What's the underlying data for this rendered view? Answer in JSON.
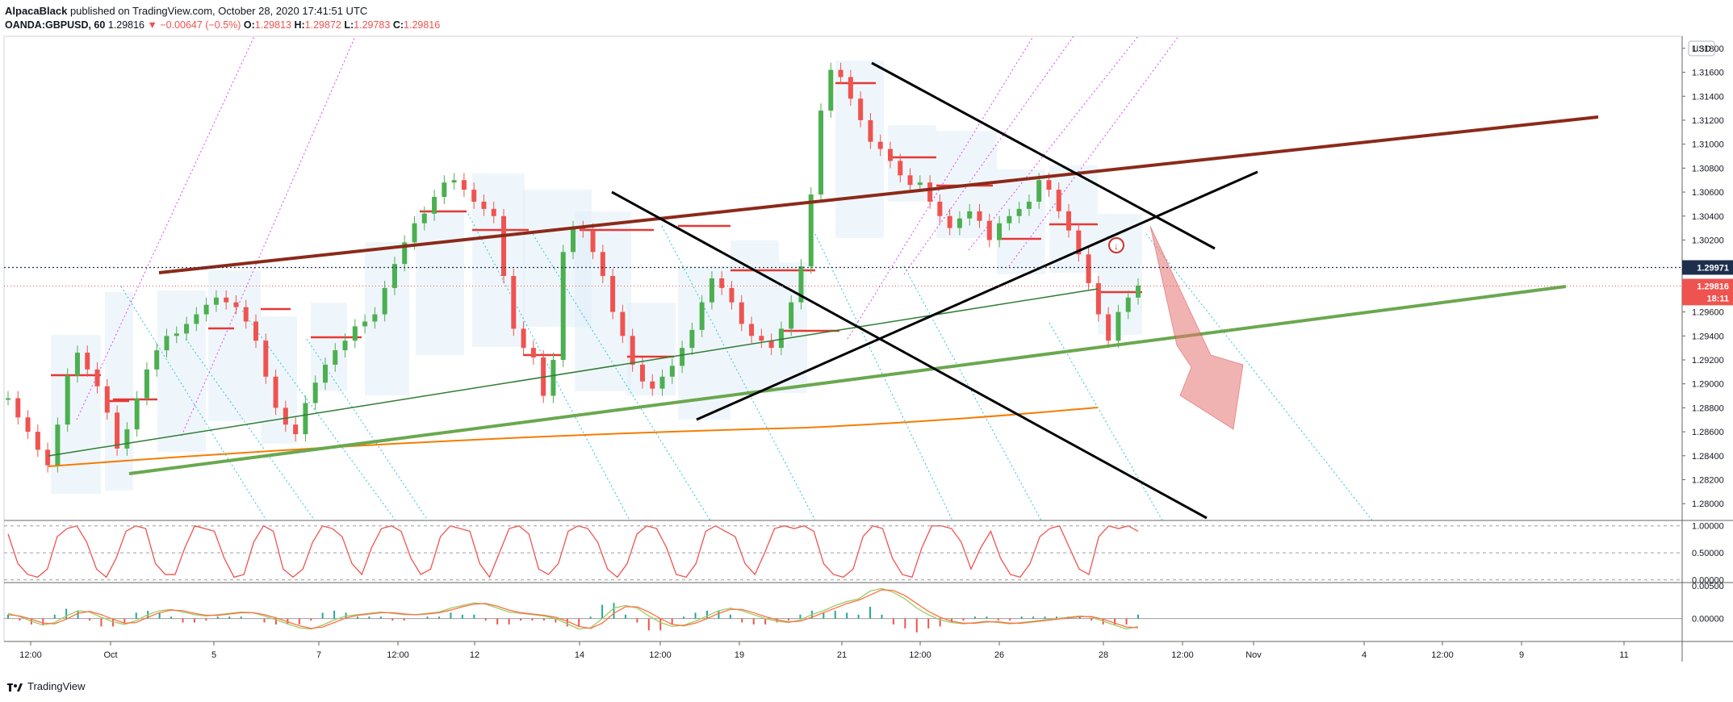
{
  "header": {
    "author": "AlpacaBlack",
    "published": "published on TradingView.com, October 28, 2020 17:41:51 UTC"
  },
  "quote": {
    "symbol": "OANDA:GBPUSD, 60",
    "last": "1.29816",
    "change": "−0.00647 (−0.5%)",
    "o_label": "O:",
    "o": "1.29813",
    "h_label": "H:",
    "h": "1.29872",
    "l_label": "L:",
    "l": "1.29783",
    "c_label": "C:",
    "c": "1.29816"
  },
  "footer": {
    "brand": "TradingView"
  },
  "colors": {
    "bearish": "#ef5350",
    "bullish": "#26a69a",
    "candle_up": "#4caf50",
    "candle_down": "#ef5350",
    "channel_top": "#8b2a1a",
    "channel_bottom": "#6aa84f",
    "ma_green": "#2e7d32",
    "ma_orange": "#f57c00",
    "black_lines": "#000000",
    "arrow": "#e57373",
    "last_price_bg": "#ef5350",
    "marker_bg": "#1e2f4d"
  },
  "chart_data": [
    {
      "type": "line",
      "title": "",
      "currency": "USD",
      "y_ticks": [
        "1.31800",
        "1.31600",
        "1.31400",
        "1.31200",
        "1.31000",
        "1.30800",
        "1.30600",
        "1.30400",
        "1.30200",
        "1.30000",
        "1.29800",
        "1.29600",
        "1.29400",
        "1.29200",
        "1.29000",
        "1.28800",
        "1.28600",
        "1.28400",
        "1.28200",
        "1.28000"
      ],
      "ylim": [
        1.2786,
        1.319
      ],
      "x_ticks": [
        "12:00",
        "Oct",
        "5",
        "7",
        "12:00",
        "12",
        "14",
        "12:00",
        "19",
        "21",
        "12:00",
        "26",
        "28",
        "12:00",
        "Nov",
        "4",
        "12:00",
        "9",
        "11"
      ],
      "price_markers": [
        {
          "label": "1.29971",
          "value": 1.29971
        },
        {
          "label": "1.29816",
          "value": 1.29816
        },
        {
          "label": "18:11",
          "value": 1.29716
        }
      ],
      "series": [
        {
          "values": [
            1.2888,
            1.2872,
            1.286,
            1.2845,
            1.2832,
            1.2866,
            1.2907,
            1.2926,
            1.2912,
            1.2898,
            1.2876,
            1.2846,
            1.2862,
            1.2888,
            1.2912,
            1.2928,
            1.294,
            1.2942,
            1.295,
            1.2958,
            1.2966,
            1.2972,
            1.2968,
            1.2964,
            1.2952,
            1.2936,
            1.2906,
            1.288,
            1.2866,
            1.2858,
            1.2884,
            1.2901,
            1.2916,
            1.2928,
            1.2936,
            1.2948,
            1.2952,
            1.2958,
            1.298,
            1.3,
            1.3018,
            1.3034,
            1.3042,
            1.3056,
            1.3068,
            1.307,
            1.3062,
            1.3052,
            1.3046,
            1.304,
            1.299,
            1.2946,
            1.293,
            1.2922,
            1.289,
            1.292,
            1.301,
            1.303,
            1.3028,
            1.301,
            1.299,
            1.296,
            1.294,
            1.2916,
            1.2902,
            1.2896,
            1.2906,
            1.2915,
            1.293,
            1.2945,
            1.2968,
            1.2988,
            1.298,
            1.2968,
            1.295,
            1.294,
            1.2936,
            1.293,
            1.2946,
            1.2968,
            1.2998,
            1.3058,
            1.3128,
            1.3162,
            1.3156,
            1.3138,
            1.312,
            1.3102,
            1.3096,
            1.3086,
            1.3074,
            1.3066,
            1.3068,
            1.3052,
            1.304,
            1.303,
            1.3038,
            1.3044,
            1.3036,
            1.302,
            1.3034,
            1.304,
            1.3046,
            1.3052,
            1.307,
            1.3062,
            1.3044,
            1.3028,
            1.3008,
            1.2984,
            1.2958,
            1.2936,
            1.296,
            1.2972,
            1.2982
          ]
        }
      ]
    },
    {
      "type": "line",
      "title": "",
      "y_ticks": [
        "1.00000",
        "0.50000",
        "0.00000"
      ],
      "ylim": [
        -0.05,
        1.1
      ],
      "series": [
        {
          "values": [
            0.85,
            0.3,
            0.1,
            0.05,
            0.2,
            0.8,
            0.95,
            1.0,
            0.7,
            0.2,
            0.05,
            0.4,
            0.9,
            1.0,
            0.95,
            0.3,
            0.1,
            0.1,
            0.6,
            1.0,
            0.95,
            0.9,
            0.4,
            0.05,
            0.1,
            0.7,
            1.0,
            0.9,
            0.2,
            0.05,
            0.2,
            0.7,
            1.0,
            0.95,
            0.8,
            0.3,
            0.1,
            0.6,
            0.95,
            1.0,
            0.9,
            0.4,
            0.1,
            0.2,
            0.8,
            1.0,
            0.95,
            0.9,
            0.3,
            0.05,
            0.5,
            0.95,
            1.0,
            0.85,
            0.2,
            0.1,
            0.3,
            0.9,
            1.0,
            0.95,
            0.7,
            0.2,
            0.05,
            0.3,
            0.85,
            1.0,
            0.95,
            0.6,
            0.1,
            0.05,
            0.3,
            0.9,
            1.0,
            0.9,
            0.8,
            0.3,
            0.1,
            0.5,
            0.95,
            1.0,
            0.95,
            1.0,
            0.9,
            0.3,
            0.1,
            0.05,
            0.2,
            0.8,
            1.0,
            0.95,
            0.4,
            0.1,
            0.05,
            0.6,
            1.0,
            1.0,
            0.95,
            0.7,
            0.2,
            0.6,
            0.9,
            0.4,
            0.1,
            0.05,
            0.3,
            0.8,
            0.95,
            1.0,
            0.6,
            0.2,
            0.1,
            0.8,
            1.0,
            0.95,
            1.0,
            0.9
          ]
        }
      ]
    },
    {
      "type": "line",
      "title": "",
      "y_ticks": [
        "0.00500",
        "0.00000"
      ],
      "ylim": [
        -0.0035,
        0.0055
      ],
      "series": [
        {
          "values": [
            0.0008,
            0.0003,
            -0.0004,
            -0.001,
            -0.0006,
            0.0004,
            0.0012,
            0.001,
            0.0002,
            -0.0005,
            -0.0009,
            -0.0003,
            0.0006,
            0.0012,
            0.0014,
            0.001,
            0.0006,
            0.0004,
            0.0006,
            0.0008,
            0.001,
            0.0009,
            0.0004,
            -0.0002,
            -0.0008,
            -0.0014,
            -0.0016,
            -0.001,
            -0.0002,
            0.0004,
            0.0006,
            0.0008,
            0.001,
            0.0008,
            0.0006,
            0.0006,
            0.0008,
            0.001,
            0.0016,
            0.002,
            0.0024,
            0.0022,
            0.0016,
            0.001,
            0.0008,
            0.0006,
            0.0004,
            0.0,
            -0.0008,
            -0.0016,
            -0.0014,
            0.0,
            0.0016,
            0.002,
            0.0016,
            0.0004,
            -0.0006,
            -0.0012,
            -0.001,
            -0.0004,
            0.0004,
            0.0012,
            0.0016,
            0.0012,
            0.0006,
            0.0,
            -0.0004,
            -0.0006,
            -0.0002,
            0.0006,
            0.0012,
            0.002,
            0.0026,
            0.003,
            0.0042,
            0.0046,
            0.004,
            0.003,
            0.0016,
            0.0006,
            -0.0002,
            -0.0006,
            -0.0008,
            -0.0006,
            -0.0004,
            -0.0006,
            -0.0008,
            -0.0006,
            -0.0004,
            -0.0002,
            0.0,
            0.0002,
            0.0004,
            0.0002,
            -0.0004,
            -0.001,
            -0.0016,
            -0.0012
          ]
        },
        {
          "values": [
            0.0006,
            0.0004,
            -0.0001,
            -0.0007,
            -0.0008,
            -0.0001,
            0.0008,
            0.0011,
            0.0006,
            -0.0001,
            -0.0007,
            -0.0006,
            0.0002,
            0.0009,
            0.0013,
            0.0012,
            0.0008,
            0.0005,
            0.0005,
            0.0007,
            0.0009,
            0.0009,
            0.0006,
            0.0001,
            -0.0005,
            -0.0011,
            -0.0015,
            -0.0013,
            -0.0006,
            0.0001,
            0.0005,
            0.0007,
            0.0009,
            0.0009,
            0.0007,
            0.0006,
            0.0007,
            0.0009,
            0.0013,
            0.0018,
            0.0022,
            0.0023,
            0.0019,
            0.0013,
            0.0009,
            0.0007,
            0.0005,
            0.0002,
            -0.0004,
            -0.0012,
            -0.0015,
            -0.0007,
            0.0008,
            0.0018,
            0.0018,
            0.001,
            0.0,
            -0.0009,
            -0.0011,
            -0.0007,
            0.0,
            0.0008,
            0.0014,
            0.0014,
            0.0009,
            0.0003,
            -0.0002,
            -0.0005,
            -0.0004,
            0.0002,
            0.0009,
            0.0016,
            0.0023,
            0.0028,
            0.0036,
            0.0044,
            0.0043,
            0.0035,
            0.0023,
            0.0011,
            0.0002,
            -0.0004,
            -0.0007,
            -0.0007,
            -0.0005,
            -0.0005,
            -0.0007,
            -0.0007,
            -0.0005,
            -0.0003,
            -0.0001,
            0.0001,
            0.0003,
            0.0003,
            -0.0001,
            -0.0007,
            -0.0013,
            -0.0014
          ]
        }
      ]
    }
  ]
}
